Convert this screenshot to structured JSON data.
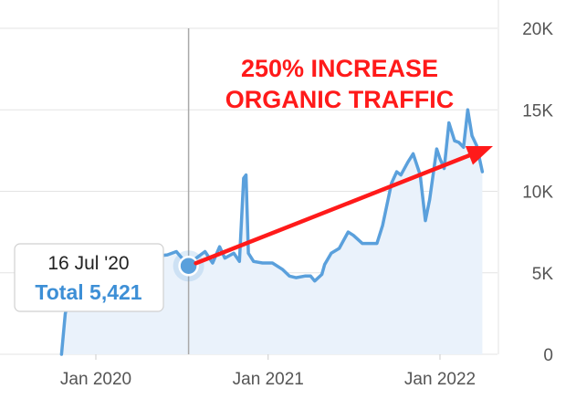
{
  "chart_data": {
    "type": "area",
    "title": "",
    "xlabel": "",
    "ylabel": "",
    "x_ticks": [
      "Jan 2020",
      "Jan 2021",
      "Jan 2022"
    ],
    "y_ticks": [
      "20K",
      "15K",
      "10K",
      "5K",
      "0"
    ],
    "ylim": [
      0,
      20000
    ],
    "grid": true,
    "series": [
      {
        "color": "#5aa0dc",
        "x": [
          "2019-10-20",
          "2019-10-28",
          "2019-11-10",
          "2019-12-01",
          "2019-12-20",
          "2020-01-10",
          "2020-02-01",
          "2020-03-01",
          "2020-04-01",
          "2020-05-01",
          "2020-06-01",
          "2020-06-20",
          "2020-07-16",
          "2020-08-01",
          "2020-08-20",
          "2020-09-05",
          "2020-09-20",
          "2020-10-01",
          "2020-10-20",
          "2020-11-01",
          "2020-11-10",
          "2020-11-15",
          "2020-11-20",
          "2020-12-01",
          "2020-12-20",
          "2021-01-10",
          "2021-02-01",
          "2021-02-15",
          "2021-03-01",
          "2021-03-20",
          "2021-04-01",
          "2021-04-10",
          "2021-04-25",
          "2021-05-01",
          "2021-05-15",
          "2021-06-01",
          "2021-06-20",
          "2021-07-01",
          "2021-07-20",
          "2021-08-01",
          "2021-08-20",
          "2021-09-01",
          "2021-09-20",
          "2021-10-01",
          "2021-10-10",
          "2021-10-25",
          "2021-11-05",
          "2021-11-20",
          "2021-12-01",
          "2021-12-10",
          "2021-12-25",
          "2022-01-01",
          "2022-01-10",
          "2022-01-20",
          "2022-02-01",
          "2022-02-10",
          "2022-02-20",
          "2022-03-01",
          "2022-03-10",
          "2022-03-20",
          "2022-04-01"
        ],
        "values": [
          0,
          2500,
          4000,
          5000,
          5200,
          5400,
          5600,
          5800,
          5900,
          6000,
          6100,
          6300,
          5421,
          5900,
          6300,
          5600,
          6600,
          5900,
          6200,
          5700,
          10800,
          11000,
          6200,
          5700,
          5600,
          5600,
          5200,
          4800,
          4700,
          4800,
          4800,
          4500,
          4900,
          5500,
          6200,
          6500,
          7500,
          7300,
          6800,
          6800,
          6800,
          7900,
          10500,
          11200,
          11000,
          11800,
          12300,
          11000,
          8200,
          9500,
          12600,
          12000,
          11400,
          14200,
          13100,
          13000,
          12700,
          15000,
          13400,
          12800,
          11200
        ]
      }
    ],
    "marker": {
      "date": "16 Jul '20",
      "value": 5421
    }
  },
  "tooltip": {
    "date": "16 Jul '20",
    "total": "Total 5,421"
  },
  "annotation": {
    "line1": "250% INCREASE",
    "line2": "ORGANIC TRAFFIC"
  },
  "colors": {
    "line": "#5aa0dc",
    "fill": "#eaf2fb",
    "arrow": "#ff1a1a",
    "grid": "#e3e3e3"
  }
}
